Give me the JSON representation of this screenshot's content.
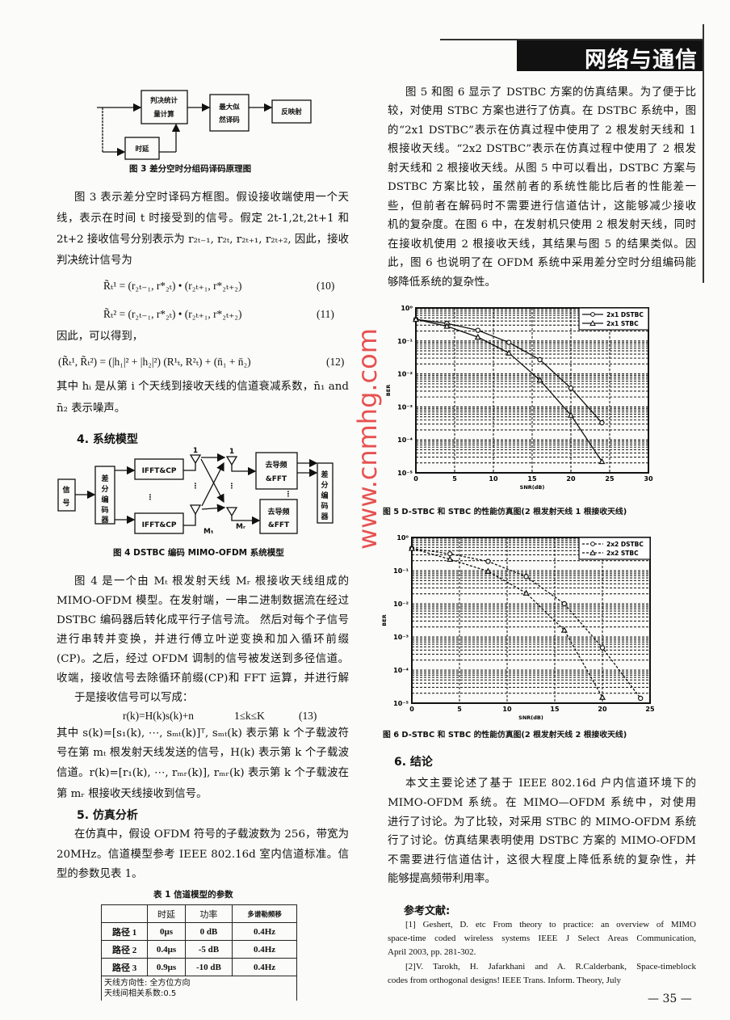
{
  "header": {
    "section": "网络与通信"
  },
  "fig3": {
    "boxes": {
      "stat1": "判决统计",
      "stat2": "量计算",
      "ml1": "最大似",
      "ml2": "然译码",
      "demap": "反映射",
      "delay": "时延"
    },
    "caption": "图 3   差分空时分组码译码原理图"
  },
  "left": {
    "para1": [
      "图 3 表示差分空时译码方框图。假设接收端使用一个天",
      "线，表示在时间 t 时接受到的信号。假定 2t-1,2t,2t+1 和",
      "2t+2 接收信号分别表示为 r₂ₜ₋₁, r₂ₜ, r₂ₜ₊₁, r₂ₜ₊₂, 因此，接收机的",
      "判决统计信号为"
    ],
    "eq10": "R̃ₜ¹ =  (r₂ₜ₋₁, r*₂ₜ) • (r₂ₜ₊₁, r*₂ₜ₊₂)",
    "eq10_num": "(10)",
    "eq11": "R̃ₜ² =  (r₂ₜ₋₁, r*₂ₜ) • (r₂ₜ₊₁, r*₂ₜ₊₂)",
    "eq11_num": "(11)",
    "thus": "因此，可以得到，",
    "eq12": "(R̃ₜ¹, R̃ₜ²) = (|h₁|² + |h₂|²) (R¹ₜ, R²ₜ) + (n̄₁ + n̄₂)",
    "eq12_num": "(12)",
    "para1b": [
      "其中 hᵢ 是从第 i 个天线到接收天线的信道衰减系数，n̄₁ and",
      "n̄₂ 表示噪声。"
    ],
    "section4": "4. 系统模型",
    "para2": [
      "图 4 是一个由 Mₜ 根发射天线 Mᵣ 根接收天线组成的",
      "MIMO-OFDM 模型。在发射端，一串二进制数据流在经过一个",
      "DSTBC 编码器后转化成平行子信号流。 然后对每个子信号",
      "进行串转并变换，并进行傅立叶逆变换和加入循环前缀",
      "(CP)。之后，经过 OFDM 调制的信号被发送到多径信道。在接",
      "收端，接收信号去除循环前缀(CP)和 FFT 运算，并进行解码，",
      "于是接收信号可以写成："
    ],
    "eq13": "r(k)=H(k)s(k)+n",
    "eq13_cond": "1≤k≤K",
    "eq13_num": "(13)",
    "para3": [
      "其中 s(k)=[s₁(k), ⋯, sₘₜ(k)]ᵀ, sₘₜ(k) 表示第 k 个子载波符",
      "号在第 mₜ 根发射天线发送的信号，H(k) 表示第 k 个子载波",
      "信道。r(k)=[r₁(k), ⋯, rₘᵣ(k)], rₘᵣ(k) 表示第 k 个子载波在",
      "第 mᵣ 根接收天线接收到信号。"
    ],
    "section5": "5. 仿真分析",
    "para4": [
      "在仿真中，假设 OFDM 符号的子载波数为 256，带宽为",
      "20MHz。信道模型参考 IEEE 802.16d 室内信道标准。信道模",
      "型的参数见表 1。"
    ]
  },
  "fig4": {
    "signal": [
      "信",
      "号"
    ],
    "encoder": [
      "差",
      "分",
      "编",
      "码",
      "器"
    ],
    "ifft_top": "IFFT&CP",
    "ifft_bottom": "IFFT&CP",
    "tx_top": "1",
    "tx_bottom": "Mₜ",
    "rx_top": "1",
    "rx_bottom": "Mᵣ",
    "rx_box_top": [
      "去导频",
      "&FFT"
    ],
    "rx_box_bottom": [
      "去导频",
      "&FFT"
    ],
    "decoder": [
      "差",
      "分",
      "编",
      "码",
      "器"
    ],
    "caption": "图 4   DSTBC 编码 MIMO-OFDM 系统模型"
  },
  "table1": {
    "caption": "表 1    信道模型的参数",
    "headers": [
      "",
      "时延",
      "功率",
      "多谱勒频移"
    ],
    "rows": [
      [
        "路径 1",
        "0μs",
        "0 dB",
        "0.4Hz"
      ],
      [
        "路径 2",
        "0.4μs",
        "-5 dB",
        "0.4Hz"
      ],
      [
        "路径 3",
        "0.9μs",
        "-10 dB",
        "0.4Hz"
      ]
    ],
    "notes": [
      "天线方向性: 全方位方向",
      "天线间相关系数:0.5"
    ]
  },
  "right": {
    "para1": [
      "图 5 和图 6 显示了 DSTBC 方案的仿真结果。为了便于比",
      "较，对使用 STBC 方案也进行了仿真。在 DSTBC 系统中，图中",
      "的“2x1 DSTBC”表示在仿真过程中使用了 2 根发射天线和 1",
      "根接收天线。“2x2 DSTBC”表示在仿真过程中使用了 2 根发",
      "射天线和 2 根接收天线。从图 5 中可以看出，DSTBC 方案与",
      "DSTBC 方案比较，虽然前者的系统性能比后者的性能差一",
      "些，但前者在解码时不需要进行信道估计，这能够减少接收",
      "机的复杂度。在图 6 中，在发射机只使用 2 根发射天线，同时",
      "在接收机使用 2 根接收天线，其结果与图 5 的结果类似。因",
      "此，图 6 也说明了在 OFDM 系统中采用差分空时分组编码能",
      "够降低系统的复杂性。"
    ],
    "fig5_caption": "图 5   D-STBC 和 STBC 的性能仿真图(2 根发射天线 1 根接收天线)",
    "fig6_caption": "图 6   D-STBC 和 STBC 的性能仿真图(2 根发射天线 2 根接收天线)",
    "section6": "6. 结论",
    "para2": [
      "本文主要论述了基于 IEEE 802.16d 户内信道环境下的",
      "MIMO-OFDM 系统。在 MIMO—OFDM 系统中，对使用 DSTBC 方案",
      "进行了讨论。为了比较，对采用 STBC 的 MIMO-OFDM 系统也进",
      "行了讨论。仿真结果表明使用 DSTBC 方案的 MIMO-OFDM 系统",
      "不需要进行信道估计，这很大程度上降低系统的复杂性，并",
      "能够提高频带利用率。"
    ],
    "refs_title": "参考文献:",
    "refs": [
      "[1] Geshert, D.  etc From theory to practice: an overview of MIMO",
      "space-time coded wireless systems  IEEE J Select Areas Communication,",
      "April 2003, pp.  281-302.",
      "[2]V. Tarokh, H.  Jafarkhani  and  A. R.Calderbank, Space-timeblock",
      "codes from orthogonal designs! IEEE Trans.  Inform.  Theory, July"
    ]
  },
  "page_number": "— 35 —",
  "watermark": "www.cnmhg.com",
  "chart_data": [
    {
      "type": "line",
      "title": "",
      "xlabel": "SNR(dB)",
      "ylabel": "BER",
      "x": [
        0,
        4,
        8,
        12,
        16,
        20,
        24
      ],
      "xlim": [
        0,
        30
      ],
      "xticks": [
        0,
        5,
        10,
        15,
        20,
        25,
        30
      ],
      "ylim": [
        1e-05,
        1
      ],
      "yscale": "log",
      "yticks": [
        "10⁰",
        "10⁻¹",
        "10⁻²",
        "10⁻³",
        "10⁻⁴",
        "10⁻⁵"
      ],
      "grid": true,
      "legend": "top-right",
      "series": [
        {
          "name": "2x1 DSTBC",
          "marker": "circle",
          "style": "solid",
          "values": [
            0.45,
            0.34,
            0.21,
            0.09,
            0.027,
            0.0037,
            0.00033
          ]
        },
        {
          "name": "2x1 STBC",
          "marker": "triangle",
          "style": "solid",
          "values": [
            0.45,
            0.28,
            0.13,
            0.043,
            0.0065,
            0.00056,
            2.2e-05
          ]
        }
      ]
    },
    {
      "type": "line",
      "title": "",
      "xlabel": "SNR(dB)",
      "ylabel": "BER",
      "x": [
        0,
        4,
        8,
        12,
        16,
        20,
        24
      ],
      "xlim": [
        0,
        25
      ],
      "xticks": [
        0,
        5,
        10,
        15,
        20,
        25
      ],
      "ylim": [
        1e-05,
        1
      ],
      "yscale": "log",
      "yticks": [
        "10⁰",
        "10⁻¹",
        "10⁻²",
        "10⁻³",
        "10⁻⁴",
        "10⁻⁵"
      ],
      "grid": true,
      "legend": "top-right",
      "series": [
        {
          "name": "2x2 DSTBC",
          "marker": "circle",
          "style": "dashed",
          "values": [
            0.47,
            0.32,
            0.19,
            0.066,
            0.01,
            0.00047,
            1.4e-05
          ]
        },
        {
          "name": "2x2 STBC",
          "marker": "triangle",
          "style": "dashed",
          "values": [
            0.47,
            0.22,
            0.096,
            0.021,
            0.0016,
            1.5e-05,
            null
          ]
        }
      ]
    }
  ]
}
